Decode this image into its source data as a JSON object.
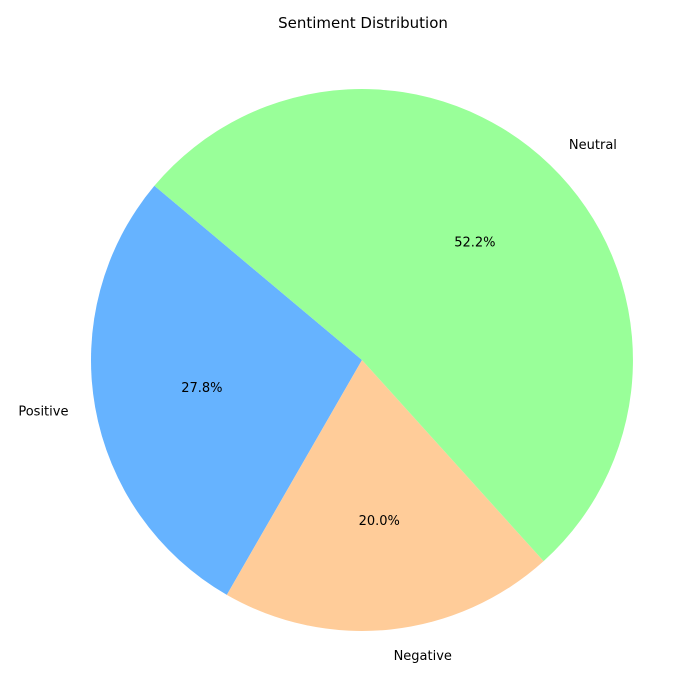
{
  "chart_data": {
    "type": "pie",
    "title": "Sentiment Distribution",
    "categories": [
      "Positive",
      "Negative",
      "Neutral"
    ],
    "values": [
      27.8,
      20.0,
      52.2
    ],
    "percent_labels": [
      "27.8%",
      "20.0%",
      "52.2%"
    ],
    "colors": [
      "#66b3ff",
      "#ffcc99",
      "#99ff99"
    ],
    "start_angle_deg": 140,
    "direction": "counterclockwise",
    "legend": "none"
  }
}
